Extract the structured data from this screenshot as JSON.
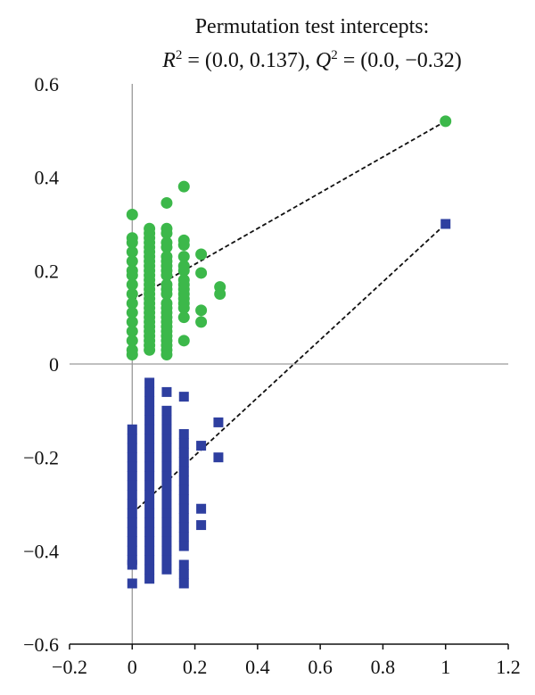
{
  "chart_data": {
    "type": "scatter",
    "title": "Permutation test intercepts:",
    "subtitle": {
      "r_label": "R",
      "r_rest": " = (0.0, 0.137), ",
      "q_label": "Q",
      "q_rest": " = (0.0, −0.32)",
      "sup": "2"
    },
    "xlim": [
      -0.2,
      1.2
    ],
    "ylim": [
      -0.6,
      0.6
    ],
    "x_ticks": [
      -0.2,
      0,
      0.2,
      0.4,
      0.6,
      0.8,
      1,
      1.2
    ],
    "x_tick_labels": [
      "−0.2",
      "0",
      "0.2",
      "0.4",
      "0.6",
      "0.8",
      "1",
      "1.2"
    ],
    "y_ticks": [
      -0.6,
      -0.4,
      -0.2,
      0,
      0.2,
      0.4,
      0.6
    ],
    "y_tick_labels": [
      "−0.6",
      "−0.4",
      "−0.2",
      "0",
      "0.2",
      "0.4",
      "0.6"
    ],
    "grid": false,
    "series": [
      {
        "marker": "circle",
        "color": "#3cb84a",
        "points": [
          [
            0,
            0.32
          ],
          [
            0,
            0.27
          ],
          [
            0,
            0.26
          ],
          [
            0,
            0.24
          ],
          [
            0,
            0.22
          ],
          [
            0,
            0.2
          ],
          [
            0,
            0.19
          ],
          [
            0,
            0.17
          ],
          [
            0,
            0.15
          ],
          [
            0,
            0.13
          ],
          [
            0,
            0.11
          ],
          [
            0,
            0.09
          ],
          [
            0,
            0.07
          ],
          [
            0,
            0.05
          ],
          [
            0,
            0.03
          ],
          [
            0,
            0.02
          ],
          [
            0.055,
            0.29
          ],
          [
            0.055,
            0.28
          ],
          [
            0.055,
            0.27
          ],
          [
            0.055,
            0.26
          ],
          [
            0.055,
            0.25
          ],
          [
            0.055,
            0.24
          ],
          [
            0.055,
            0.23
          ],
          [
            0.055,
            0.22
          ],
          [
            0.055,
            0.21
          ],
          [
            0.055,
            0.2
          ],
          [
            0.055,
            0.19
          ],
          [
            0.055,
            0.18
          ],
          [
            0.055,
            0.17
          ],
          [
            0.055,
            0.16
          ],
          [
            0.055,
            0.15
          ],
          [
            0.055,
            0.14
          ],
          [
            0.055,
            0.13
          ],
          [
            0.055,
            0.12
          ],
          [
            0.055,
            0.11
          ],
          [
            0.055,
            0.1
          ],
          [
            0.055,
            0.09
          ],
          [
            0.055,
            0.08
          ],
          [
            0.055,
            0.07
          ],
          [
            0.055,
            0.06
          ],
          [
            0.055,
            0.05
          ],
          [
            0.055,
            0.04
          ],
          [
            0.055,
            0.03
          ],
          [
            0.11,
            0.345
          ],
          [
            0.11,
            0.29
          ],
          [
            0.11,
            0.28
          ],
          [
            0.11,
            0.26
          ],
          [
            0.11,
            0.25
          ],
          [
            0.11,
            0.23
          ],
          [
            0.11,
            0.22
          ],
          [
            0.11,
            0.21
          ],
          [
            0.11,
            0.2
          ],
          [
            0.11,
            0.19
          ],
          [
            0.11,
            0.17
          ],
          [
            0.11,
            0.16
          ],
          [
            0.11,
            0.15
          ],
          [
            0.11,
            0.13
          ],
          [
            0.11,
            0.12
          ],
          [
            0.11,
            0.11
          ],
          [
            0.11,
            0.1
          ],
          [
            0.11,
            0.09
          ],
          [
            0.11,
            0.08
          ],
          [
            0.11,
            0.07
          ],
          [
            0.11,
            0.06
          ],
          [
            0.11,
            0.05
          ],
          [
            0.11,
            0.04
          ],
          [
            0.11,
            0.03
          ],
          [
            0.11,
            0.02
          ],
          [
            0.165,
            0.38
          ],
          [
            0.165,
            0.265
          ],
          [
            0.165,
            0.255
          ],
          [
            0.165,
            0.23
          ],
          [
            0.165,
            0.21
          ],
          [
            0.165,
            0.2
          ],
          [
            0.165,
            0.18
          ],
          [
            0.165,
            0.17
          ],
          [
            0.165,
            0.16
          ],
          [
            0.165,
            0.15
          ],
          [
            0.165,
            0.14
          ],
          [
            0.165,
            0.13
          ],
          [
            0.165,
            0.12
          ],
          [
            0.165,
            0.1
          ],
          [
            0.165,
            0.05
          ],
          [
            0.22,
            0.235
          ],
          [
            0.22,
            0.195
          ],
          [
            0.22,
            0.115
          ],
          [
            0.22,
            0.09
          ],
          [
            0.28,
            0.165
          ],
          [
            0.28,
            0.15
          ],
          [
            1.0,
            0.52
          ]
        ]
      },
      {
        "marker": "square",
        "color": "#2e3fa0",
        "points": [
          [
            0,
            -0.14
          ],
          [
            0,
            -0.16
          ],
          [
            0,
            -0.18
          ],
          [
            0,
            -0.2
          ],
          [
            0,
            -0.22
          ],
          [
            0,
            -0.24
          ],
          [
            0,
            -0.26
          ],
          [
            0,
            -0.28
          ],
          [
            0,
            -0.3
          ],
          [
            0,
            -0.32
          ],
          [
            0,
            -0.34
          ],
          [
            0,
            -0.36
          ],
          [
            0,
            -0.38
          ],
          [
            0,
            -0.4
          ],
          [
            0,
            -0.42
          ],
          [
            0,
            -0.43
          ],
          [
            0,
            -0.47
          ],
          [
            0.055,
            -0.04
          ],
          [
            0.055,
            -0.06
          ],
          [
            0.055,
            -0.08
          ],
          [
            0.055,
            -0.1
          ],
          [
            0.055,
            -0.12
          ],
          [
            0.055,
            -0.14
          ],
          [
            0.055,
            -0.16
          ],
          [
            0.055,
            -0.18
          ],
          [
            0.055,
            -0.2
          ],
          [
            0.055,
            -0.22
          ],
          [
            0.055,
            -0.24
          ],
          [
            0.055,
            -0.26
          ],
          [
            0.055,
            -0.28
          ],
          [
            0.055,
            -0.3
          ],
          [
            0.055,
            -0.32
          ],
          [
            0.055,
            -0.34
          ],
          [
            0.055,
            -0.36
          ],
          [
            0.055,
            -0.38
          ],
          [
            0.055,
            -0.4
          ],
          [
            0.055,
            -0.42
          ],
          [
            0.055,
            -0.44
          ],
          [
            0.055,
            -0.46
          ],
          [
            0.11,
            -0.06
          ],
          [
            0.11,
            -0.1
          ],
          [
            0.11,
            -0.12
          ],
          [
            0.11,
            -0.14
          ],
          [
            0.11,
            -0.16
          ],
          [
            0.11,
            -0.18
          ],
          [
            0.11,
            -0.2
          ],
          [
            0.11,
            -0.22
          ],
          [
            0.11,
            -0.24
          ],
          [
            0.11,
            -0.26
          ],
          [
            0.11,
            -0.28
          ],
          [
            0.11,
            -0.3
          ],
          [
            0.11,
            -0.32
          ],
          [
            0.11,
            -0.34
          ],
          [
            0.11,
            -0.36
          ],
          [
            0.11,
            -0.38
          ],
          [
            0.11,
            -0.4
          ],
          [
            0.11,
            -0.42
          ],
          [
            0.11,
            -0.44
          ],
          [
            0.165,
            -0.07
          ],
          [
            0.165,
            -0.15
          ],
          [
            0.165,
            -0.17
          ],
          [
            0.165,
            -0.19
          ],
          [
            0.165,
            -0.21
          ],
          [
            0.165,
            -0.23
          ],
          [
            0.165,
            -0.25
          ],
          [
            0.165,
            -0.27
          ],
          [
            0.165,
            -0.29
          ],
          [
            0.165,
            -0.31
          ],
          [
            0.165,
            -0.33
          ],
          [
            0.165,
            -0.35
          ],
          [
            0.165,
            -0.37
          ],
          [
            0.165,
            -0.39
          ],
          [
            0.165,
            -0.43
          ],
          [
            0.165,
            -0.45
          ],
          [
            0.165,
            -0.47
          ],
          [
            0.22,
            -0.175
          ],
          [
            0.22,
            -0.31
          ],
          [
            0.22,
            -0.345
          ],
          [
            0.275,
            -0.125
          ],
          [
            0.275,
            -0.2
          ],
          [
            1.0,
            0.3
          ]
        ]
      }
    ],
    "regression_lines": [
      {
        "color": "#111111",
        "style": "dashed",
        "from": [
          0,
          0.137
        ],
        "to": [
          1.0,
          0.52
        ]
      },
      {
        "color": "#111111",
        "style": "dashed",
        "from": [
          0,
          -0.32
        ],
        "to": [
          1.0,
          0.3
        ]
      }
    ]
  }
}
